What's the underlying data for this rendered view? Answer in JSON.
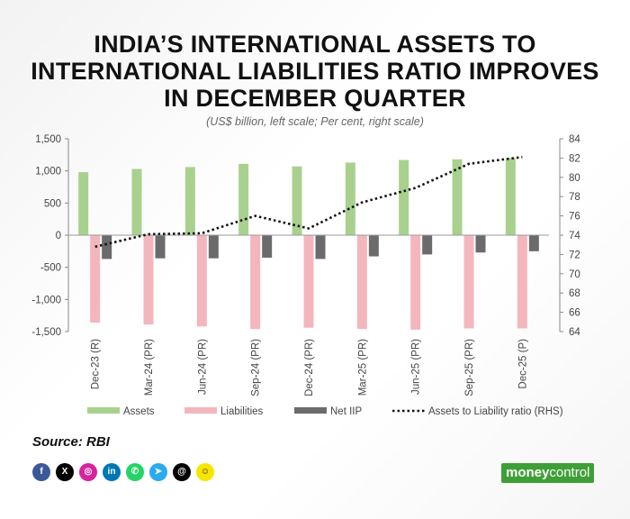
{
  "header": {
    "title_lines": [
      "INDIA’S INTERNATIONAL ASSETS TO",
      "INTERNATIONAL LIABILITIES RATIO IMPROVES",
      "IN DECEMBER QUARTER"
    ],
    "subtitle": "(US$ billion, left scale; Per cent, right scale)"
  },
  "footer": {
    "source": "Source: RBI",
    "logo_bold": "money",
    "logo_light": "control"
  },
  "socials": [
    {
      "icon": "facebook-icon",
      "glyph": "f",
      "color": "#3b5998"
    },
    {
      "icon": "x-icon",
      "glyph": "X",
      "color": "#000000"
    },
    {
      "icon": "instagram-icon",
      "glyph": "◎",
      "color": "#d6249f"
    },
    {
      "icon": "linkedin-icon",
      "glyph": "in",
      "color": "#0077b5"
    },
    {
      "icon": "whatsapp-icon",
      "glyph": "✆",
      "color": "#25d366"
    },
    {
      "icon": "telegram-icon",
      "glyph": "➤",
      "color": "#2aabee"
    },
    {
      "icon": "threads-icon",
      "glyph": "@",
      "color": "#000000"
    },
    {
      "icon": "snapchat-icon",
      "glyph": "☺",
      "color": "#f7e600"
    }
  ],
  "chart_data": {
    "type": "bar",
    "categories": [
      "Dec-23 (R)",
      "Mar-24 (PR)",
      "Jun-24 (PR)",
      "Sep-24 (PR)",
      "Dec-24 (PR)",
      "Mar-25 (PR)",
      "Jun-25 (PR)",
      "Sep-25 (PR)",
      "Dec-25 (P)"
    ],
    "series": [
      {
        "name": "Assets",
        "kind": "bar",
        "axis": "left",
        "color": "#a9d18e",
        "values": [
          980,
          1030,
          1060,
          1110,
          1070,
          1130,
          1170,
          1180,
          1200
        ]
      },
      {
        "name": "Liabilities",
        "kind": "bar",
        "axis": "left",
        "color": "#f4b6bd",
        "values": [
          -1360,
          -1390,
          -1420,
          -1460,
          -1440,
          -1460,
          -1470,
          -1450,
          -1450
        ]
      },
      {
        "name": "Net IIP",
        "kind": "bar",
        "axis": "left",
        "color": "#6b6b6b",
        "values": [
          -370,
          -360,
          -360,
          -350,
          -370,
          -330,
          -300,
          -270,
          -250
        ]
      },
      {
        "name": "Assets to Liability ratio (RHS)",
        "kind": "line",
        "axis": "right",
        "color": "#111111",
        "style": "dotted",
        "values": [
          72.8,
          74.1,
          74.2,
          76.0,
          74.7,
          77.4,
          78.9,
          81.4,
          82.1
        ]
      }
    ],
    "yleft": {
      "min": -1500,
      "max": 1500,
      "ticks": [
        -1500,
        -1000,
        -500,
        0,
        500,
        1000,
        1500
      ],
      "tick_labels": [
        "-1,500",
        "-1,000",
        "-500",
        "0",
        "500",
        "1,000",
        "1,500"
      ]
    },
    "yright": {
      "min": 64,
      "max": 84,
      "ticks": [
        64,
        66,
        68,
        70,
        72,
        74,
        76,
        78,
        80,
        82,
        84
      ]
    },
    "legend": "bottom",
    "grid": false
  }
}
